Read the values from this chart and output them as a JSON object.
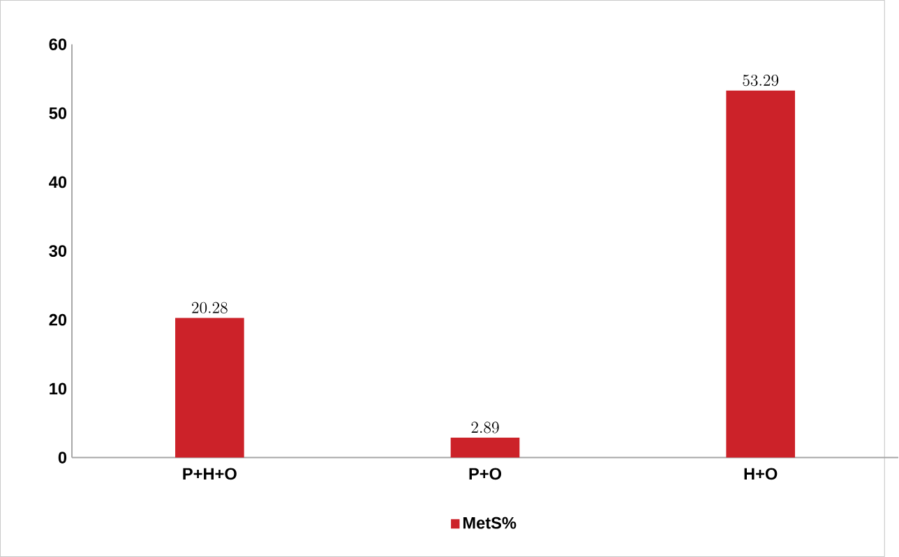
{
  "chart_data": {
    "type": "bar",
    "categories": [
      "P+H+O",
      "P+O",
      "H+O"
    ],
    "series": [
      {
        "name": "MetS%",
        "color": "#cc2229",
        "values": [
          20.28,
          2.89,
          53.29
        ]
      }
    ],
    "ylim": [
      0,
      60
    ],
    "yticks": [
      0,
      10,
      20,
      30,
      40,
      50,
      60
    ],
    "data_labels": true,
    "legend": "bottom"
  }
}
